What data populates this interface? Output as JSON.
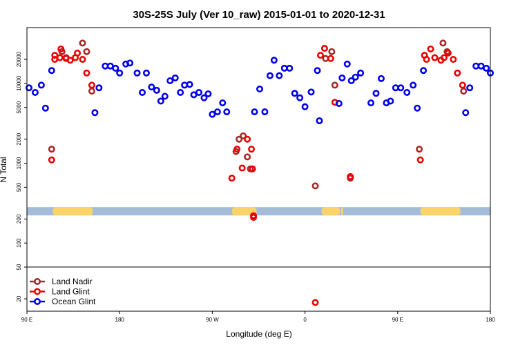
{
  "chart_data": {
    "type": "scatter",
    "title": "30S-25S July (Ver 10_raw)   2015-01-01 to 2020-12-31",
    "xlabel": "Longitude (deg E)",
    "ylabel": "N Total",
    "x_ticks": [
      {
        "value": 90,
        "label": "90 E"
      },
      {
        "value": 180,
        "label": "180"
      },
      {
        "value": 270,
        "label": "90 W"
      },
      {
        "value": 360,
        "label": "0"
      },
      {
        "value": 450,
        "label": "90 E"
      },
      {
        "value": 540,
        "label": "180"
      }
    ],
    "y_ticks": [
      20,
      50,
      100,
      200,
      500,
      1000,
      2000,
      5000,
      10000,
      20000
    ],
    "xlim": [
      90,
      540
    ],
    "ylim_log": [
      14,
      50000
    ],
    "y_scale": "log",
    "grid": false,
    "legend_position": "bottom-left",
    "separator_y": 50,
    "band": {
      "y": 250,
      "color": "#a4bcd9",
      "land_color": "#fad36b",
      "land_segments": [
        [
          115,
          154
        ],
        [
          289,
          313
        ],
        [
          376,
          394
        ],
        [
          395,
          397
        ],
        [
          472,
          511
        ]
      ]
    },
    "series": [
      {
        "name": "Land Nadir",
        "color": "#a52a2a",
        "points": [
          [
            114,
            1500
          ],
          [
            124,
            25000
          ],
          [
            128,
            20500
          ],
          [
            144,
            32000
          ],
          [
            148,
            25000
          ],
          [
            153,
            8000
          ],
          [
            293,
            1400
          ],
          [
            296,
            2000
          ],
          [
            300,
            2200
          ],
          [
            304,
            1200
          ],
          [
            307,
            850
          ],
          [
            370,
            520
          ],
          [
            380,
            20500
          ],
          [
            386,
            25000
          ],
          [
            389,
            9500
          ],
          [
            404,
            650
          ],
          [
            471,
            1500
          ],
          [
            494,
            32000
          ],
          [
            498,
            25000
          ],
          [
            514,
            8000
          ]
        ]
      },
      {
        "name": "Land Glint",
        "color": "#ee0000",
        "points": [
          [
            114,
            1100
          ],
          [
            117,
            22500
          ],
          [
            117,
            20000
          ],
          [
            123,
            27000
          ],
          [
            122,
            21000
          ],
          [
            128,
            21000
          ],
          [
            132,
            19500
          ],
          [
            137,
            21000
          ],
          [
            139,
            24000
          ],
          [
            144,
            20000
          ],
          [
            148,
            13500
          ],
          [
            153,
            9500
          ],
          [
            289,
            650
          ],
          [
            294,
            1500
          ],
          [
            299,
            870
          ],
          [
            304,
            2000
          ],
          [
            308,
            1500
          ],
          [
            309,
            850
          ],
          [
            310,
            220
          ],
          [
            310,
            210
          ],
          [
            370,
            18
          ],
          [
            375,
            22500
          ],
          [
            379,
            27500
          ],
          [
            385,
            20500
          ],
          [
            389,
            5800
          ],
          [
            404,
            680
          ],
          [
            472,
            1100
          ],
          [
            476,
            22500
          ],
          [
            478,
            20000
          ],
          [
            482,
            27000
          ],
          [
            486,
            21000
          ],
          [
            492,
            19500
          ],
          [
            495,
            21000
          ],
          [
            499,
            24000
          ],
          [
            504,
            20000
          ],
          [
            508,
            13500
          ],
          [
            513,
            9500
          ]
        ]
      },
      {
        "name": "Ocean Glint",
        "color": "#0000ee",
        "points": [
          [
            92,
            8800
          ],
          [
            98,
            7700
          ],
          [
            104,
            9500
          ],
          [
            108,
            4900
          ],
          [
            114,
            14500
          ],
          [
            156,
            4300
          ],
          [
            160,
            8800
          ],
          [
            166,
            16500
          ],
          [
            171,
            16500
          ],
          [
            176,
            15500
          ],
          [
            180,
            13500
          ],
          [
            186,
            17500
          ],
          [
            190,
            18000
          ],
          [
            197,
            13500
          ],
          [
            202,
            7700
          ],
          [
            206,
            13500
          ],
          [
            211,
            9000
          ],
          [
            216,
            8200
          ],
          [
            220,
            6000
          ],
          [
            224,
            6900
          ],
          [
            229,
            10800
          ],
          [
            234,
            11700
          ],
          [
            239,
            7700
          ],
          [
            243,
            9500
          ],
          [
            248,
            9700
          ],
          [
            252,
            7200
          ],
          [
            257,
            7700
          ],
          [
            262,
            6600
          ],
          [
            266,
            7400
          ],
          [
            270,
            4100
          ],
          [
            275,
            4400
          ],
          [
            280,
            5700
          ],
          [
            284,
            4400
          ],
          [
            311,
            4400
          ],
          [
            316,
            8500
          ],
          [
            321,
            4400
          ],
          [
            326,
            12500
          ],
          [
            330,
            19500
          ],
          [
            335,
            12500
          ],
          [
            340,
            15500
          ],
          [
            345,
            15500
          ],
          [
            350,
            7500
          ],
          [
            355,
            6600
          ],
          [
            360,
            5100
          ],
          [
            366,
            7800
          ],
          [
            372,
            14500
          ],
          [
            374,
            3400
          ],
          [
            393,
            5600
          ],
          [
            396,
            11700
          ],
          [
            401,
            17500
          ],
          [
            405,
            10800
          ],
          [
            409,
            12000
          ],
          [
            414,
            13500
          ],
          [
            424,
            5700
          ],
          [
            429,
            7500
          ],
          [
            434,
            11500
          ],
          [
            439,
            5700
          ],
          [
            443,
            6000
          ],
          [
            448,
            8800
          ],
          [
            453,
            8800
          ],
          [
            459,
            7700
          ],
          [
            465,
            9500
          ],
          [
            469,
            4900
          ],
          [
            475,
            14500
          ],
          [
            516,
            4300
          ],
          [
            520,
            8800
          ],
          [
            526,
            16500
          ],
          [
            531,
            16500
          ],
          [
            536,
            15500
          ],
          [
            540,
            13500
          ]
        ]
      }
    ]
  }
}
